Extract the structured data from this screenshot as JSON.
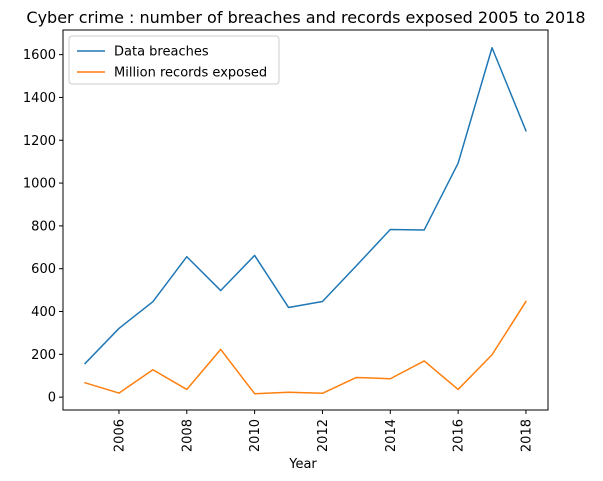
{
  "chart_data": {
    "type": "line",
    "title": "Cyber crime : number of breaches and records exposed 2005 to 2018",
    "xlabel": "Year",
    "ylabel": "",
    "x": [
      2005,
      2006,
      2007,
      2008,
      2009,
      2010,
      2011,
      2012,
      2013,
      2014,
      2015,
      2016,
      2017,
      2018
    ],
    "xlim": [
      2004.35,
      2018.65
    ],
    "ylim": [
      -60,
      1715
    ],
    "x_ticks": [
      "2006",
      "2008",
      "2010",
      "2012",
      "2014",
      "2016",
      "2018"
    ],
    "y_ticks": [
      "0",
      "200",
      "400",
      "600",
      "800",
      "1000",
      "1200",
      "1400",
      "1600"
    ],
    "grid": false,
    "legend_position": "top-left",
    "series": [
      {
        "name": "Data breaches",
        "color": "#1f77b4",
        "values": [
          157,
          321,
          446,
          656,
          498,
          662,
          419,
          447,
          614,
          783,
          781,
          1093,
          1632,
          1244
        ]
      },
      {
        "name": "Million records exposed",
        "color": "#ff7f0e",
        "values": [
          67,
          19,
          128,
          36,
          223,
          16,
          23,
          18,
          92,
          86,
          169,
          36,
          198,
          447
        ]
      }
    ]
  }
}
